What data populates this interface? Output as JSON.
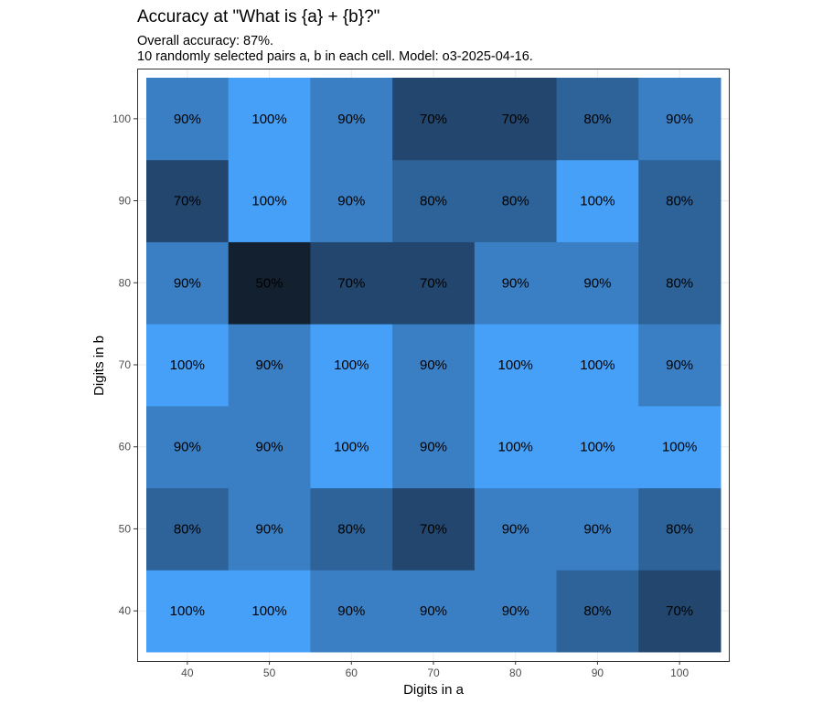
{
  "chart_data": {
    "type": "heatmap",
    "title": "Accuracy at \"What is {a} + {b}?\"",
    "subtitle_lines": [
      "Overall accuracy: 87%.",
      "10 randomly selected pairs a, b in each cell. Model: o3-2025-04-16."
    ],
    "xlabel": "Digits in a",
    "ylabel": "Digits in b",
    "x": [
      40,
      50,
      60,
      70,
      80,
      90,
      100
    ],
    "y": [
      40,
      50,
      60,
      70,
      80,
      90,
      100
    ],
    "x_tick_labels": [
      "40",
      "50",
      "60",
      "70",
      "80",
      "90",
      "100"
    ],
    "y_tick_labels": [
      "40",
      "50",
      "60",
      "70",
      "80",
      "90",
      "100"
    ],
    "values_by_row_top_to_bottom": {
      "100": [
        90,
        100,
        90,
        70,
        70,
        80,
        90
      ],
      "90": [
        70,
        100,
        90,
        80,
        80,
        100,
        80
      ],
      "80": [
        90,
        50,
        70,
        70,
        90,
        90,
        80
      ],
      "70": [
        100,
        90,
        100,
        90,
        100,
        100,
        90
      ],
      "60": [
        90,
        90,
        100,
        90,
        100,
        100,
        100
      ],
      "50": [
        80,
        90,
        80,
        70,
        90,
        90,
        80
      ],
      "40": [
        100,
        100,
        90,
        90,
        90,
        80,
        70
      ]
    },
    "value_unit": "%",
    "color_scale": {
      "50": "#132030",
      "70": "#22466e",
      "80": "#2d6399",
      "90": "#3a7fc4",
      "100": "#46a0f7"
    },
    "grid": true,
    "legend": "none"
  }
}
